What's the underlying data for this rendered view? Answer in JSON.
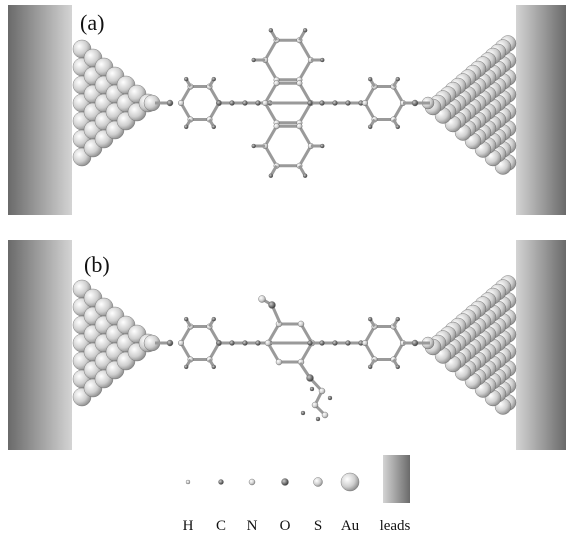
{
  "panels": [
    {
      "label": "(a)"
    },
    {
      "label": "(b)"
    }
  ],
  "legend": {
    "items": [
      "H",
      "C",
      "N",
      "O",
      "S",
      "Au",
      "leads"
    ]
  }
}
